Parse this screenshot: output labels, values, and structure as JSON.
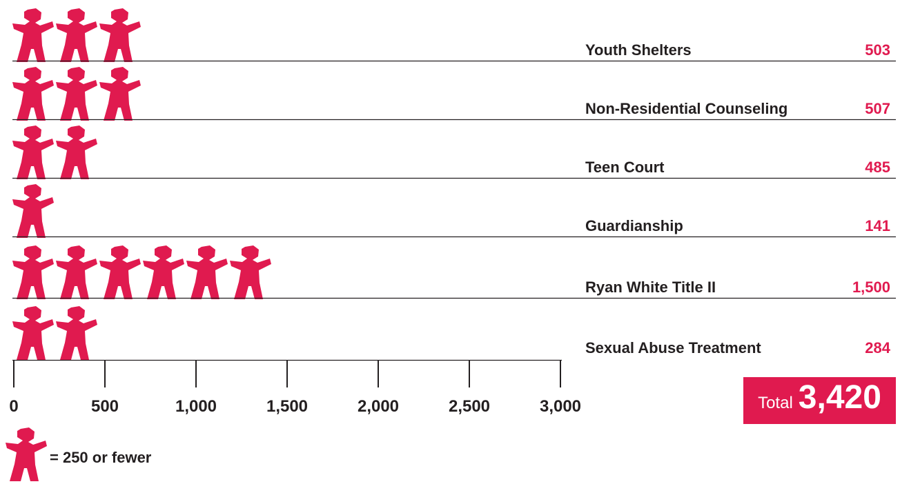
{
  "colors": {
    "accent": "#e01a4f",
    "text": "#231f20",
    "rule": "#231f20"
  },
  "icon": {
    "name": "person-icon"
  },
  "legend": {
    "text": "= 250 or fewer"
  },
  "total": {
    "label": "Total",
    "value": "3,420"
  },
  "chart_data": {
    "type": "bar",
    "orientation": "horizontal",
    "encoding": "pictograph",
    "categories": [
      "Youth Shelters",
      "Non-Residential Counseling",
      "Teen Court",
      "Guardianship",
      "Ryan White Title II",
      "Sexual Abuse Treatment"
    ],
    "values": [
      503,
      507,
      485,
      141,
      1500,
      284
    ],
    "value_labels": [
      "503",
      "507",
      "485",
      "141",
      "1,500",
      "284"
    ],
    "icons_per_row": [
      3,
      3,
      2,
      1,
      6,
      2
    ],
    "units_per_icon": 250,
    "xlim": [
      0,
      3000
    ],
    "ticks": [
      0,
      500,
      1000,
      1500,
      2000,
      2500,
      3000
    ],
    "tick_labels": [
      "0",
      "500",
      "1,000",
      "1,500",
      "2,000",
      "2,500",
      "3,000"
    ],
    "xlabel": "",
    "ylabel": "",
    "title": "",
    "grid": false
  }
}
